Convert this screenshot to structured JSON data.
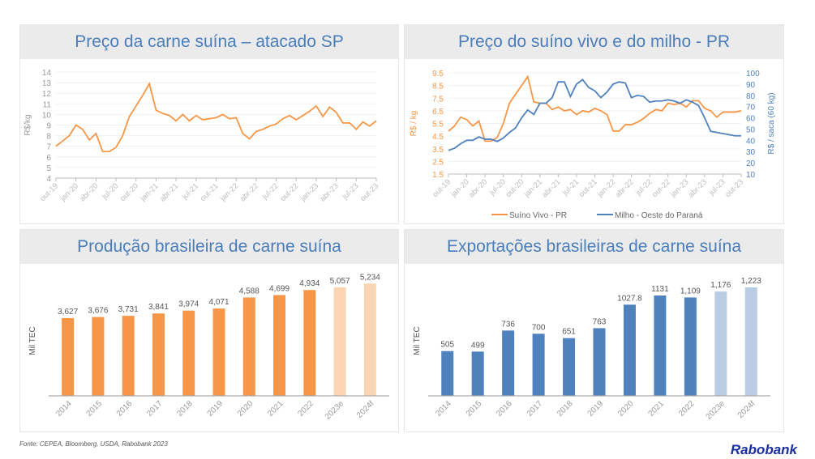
{
  "footer": {
    "source": "Fonte: CEPEA, Bloomberg, USDA, Rabobank 2023",
    "logo": "Rabobank"
  },
  "colors": {
    "orange": "#f79646",
    "orange_light": "#fcd5b4",
    "blue": "#4f81bd",
    "blue_light": "#b8cce4",
    "title": "#4a7ebb"
  },
  "chart_data": [
    {
      "type": "line",
      "title": "Preço da carne suína – atacado SP",
      "ylabel": "R$/kg",
      "ylim": [
        4,
        14
      ],
      "yticks": [
        4,
        5,
        6,
        7,
        8,
        9,
        10,
        11,
        12,
        13,
        14
      ],
      "grid": true,
      "xtick_labels": [
        "out-19",
        "jan-20",
        "abr-20",
        "jul-20",
        "out-20",
        "jan-21",
        "abr-21",
        "jul-21",
        "out-21",
        "jan-22",
        "abr-22",
        "jul-22",
        "out-22",
        "jan-23",
        "abr-23",
        "jul-23",
        "out-23"
      ],
      "series": [
        {
          "values": [
            7.0,
            7.5,
            8.0,
            9.0,
            8.6,
            7.6,
            8.2,
            6.5,
            6.5,
            6.9,
            8.0,
            9.8,
            10.8,
            11.8,
            12.9,
            10.4,
            10.1,
            9.9,
            9.4,
            10.0,
            9.4,
            9.9,
            9.5,
            9.6,
            9.7,
            10.0,
            9.6,
            9.7,
            8.2,
            7.7,
            8.4,
            8.6,
            8.9,
            9.1,
            9.6,
            9.9,
            9.5,
            9.9,
            10.3,
            10.8,
            9.8,
            10.7,
            10.2,
            9.2,
            9.2,
            8.6,
            9.3,
            8.9,
            9.4
          ]
        }
      ]
    },
    {
      "type": "line",
      "title": "Preço do suíno vivo e do milho - PR",
      "ylabel": "R$ / kg",
      "y2label": "R$ / saca (60 kg)",
      "ylim": [
        1.5,
        9.5
      ],
      "y2lim": [
        10,
        100
      ],
      "yticks": [
        "1.5",
        "2.5",
        "3.5",
        "4.5",
        "5.5",
        "6.5",
        "7.5",
        "8.5",
        "9.5"
      ],
      "y2ticks": [
        10,
        20,
        30,
        40,
        50,
        60,
        70,
        80,
        90,
        100
      ],
      "grid": true,
      "legend": "bottom",
      "xtick_labels": [
        "out-19",
        "jan-20",
        "abr-20",
        "jul-20",
        "out-20",
        "jan-21",
        "abr-21",
        "jul-21",
        "out-21",
        "jan-22",
        "abr-22",
        "jul-22",
        "out-22",
        "jan-23",
        "abr-23",
        "jul-23",
        "out-23"
      ],
      "series": [
        {
          "name": "Suíno Vivo - PR",
          "axis": "left",
          "values": [
            4.9,
            5.3,
            6.0,
            5.8,
            5.3,
            5.7,
            4.1,
            4.1,
            4.4,
            5.5,
            7.1,
            7.8,
            8.5,
            9.2,
            7.2,
            7.1,
            7.1,
            6.6,
            6.8,
            6.5,
            6.6,
            6.2,
            6.5,
            6.4,
            6.7,
            6.5,
            6.2,
            4.9,
            4.9,
            5.4,
            5.4,
            5.6,
            5.9,
            6.3,
            6.6,
            6.5,
            7.1,
            7.0,
            7.1,
            6.8,
            7.3,
            7.3,
            6.7,
            6.5,
            6.0,
            6.4,
            6.4,
            6.4,
            6.5
          ]
        },
        {
          "name": "Milho - Oeste do Paraná",
          "axis": "right",
          "values": [
            31,
            33,
            37,
            40,
            40,
            43,
            41,
            41,
            39,
            42,
            47,
            51,
            60,
            67,
            63,
            73,
            73,
            78,
            92,
            92,
            79,
            90,
            94,
            87,
            84,
            78,
            83,
            90,
            92,
            91,
            78,
            80,
            79,
            74,
            75,
            75,
            76,
            75,
            73,
            76,
            74,
            71,
            60,
            48,
            47,
            46,
            45,
            44,
            44
          ]
        }
      ]
    },
    {
      "type": "bar",
      "title": "Produção brasileira de carne suína",
      "ylabel": "Mil TEC",
      "categories": [
        "2014",
        "2015",
        "2016",
        "2017",
        "2018",
        "2019",
        "2020",
        "2021",
        "2022",
        "2023e",
        "2024f"
      ],
      "values": [
        3627,
        3676,
        3731,
        3841,
        3974,
        4071,
        4588,
        4699,
        4934,
        5057,
        5234
      ],
      "labels": [
        "3,627",
        "3,676",
        "3,731",
        "3,841",
        "3,974",
        "4,071",
        "4,588",
        "4,699",
        "4,934",
        "5,057",
        "5,234"
      ]
    },
    {
      "type": "bar",
      "title": "Exportações brasileiras de carne suína",
      "ylabel": "Mil TEC",
      "categories": [
        "2014",
        "2015",
        "2016",
        "2017",
        "2018",
        "2019",
        "2020",
        "2021",
        "2022",
        "2023e",
        "2024f"
      ],
      "values": [
        505,
        499,
        736,
        700,
        651,
        763,
        1027.8,
        1131,
        1109,
        1176,
        1223
      ],
      "labels": [
        "505",
        "499",
        "736",
        "700",
        "651",
        "763",
        "1027.8",
        "1131",
        "1,109",
        "1,176",
        "1,223"
      ]
    }
  ]
}
